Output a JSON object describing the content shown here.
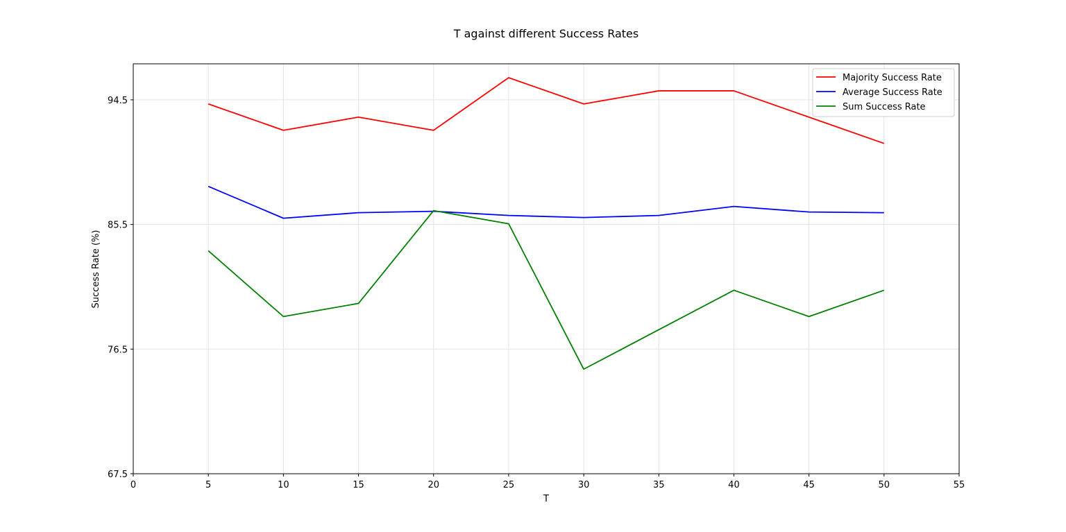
{
  "chart_data": {
    "type": "line",
    "title": "T against different Success Rates",
    "xlabel": "T",
    "ylabel": "Success Rate (%)",
    "xlim": [
      0,
      55
    ],
    "ylim": [
      67.5,
      97.1
    ],
    "xticks": [
      0,
      5,
      10,
      15,
      20,
      25,
      30,
      35,
      40,
      45,
      50,
      55
    ],
    "yticks": [
      67.5,
      76.5,
      85.5,
      94.5
    ],
    "grid": true,
    "legend_position": "top-right",
    "x": [
      5,
      10,
      15,
      20,
      25,
      30,
      35,
      40,
      45,
      50
    ],
    "series": [
      {
        "name": "Majority Success Rate",
        "color": "#ff0000",
        "values": [
          94.2,
          92.3,
          93.25,
          92.3,
          96.1,
          94.2,
          95.15,
          95.15,
          93.25,
          91.35
        ]
      },
      {
        "name": "Average Success Rate",
        "color": "#0000ff",
        "values": [
          88.25,
          85.95,
          86.35,
          86.45,
          86.15,
          86.0,
          86.15,
          86.8,
          86.4,
          86.35
        ]
      },
      {
        "name": "Sum Success Rate",
        "color": "#008000",
        "values": [
          83.6,
          78.85,
          79.8,
          86.5,
          85.55,
          75.05,
          77.9,
          80.75,
          78.85,
          80.75
        ]
      }
    ]
  }
}
